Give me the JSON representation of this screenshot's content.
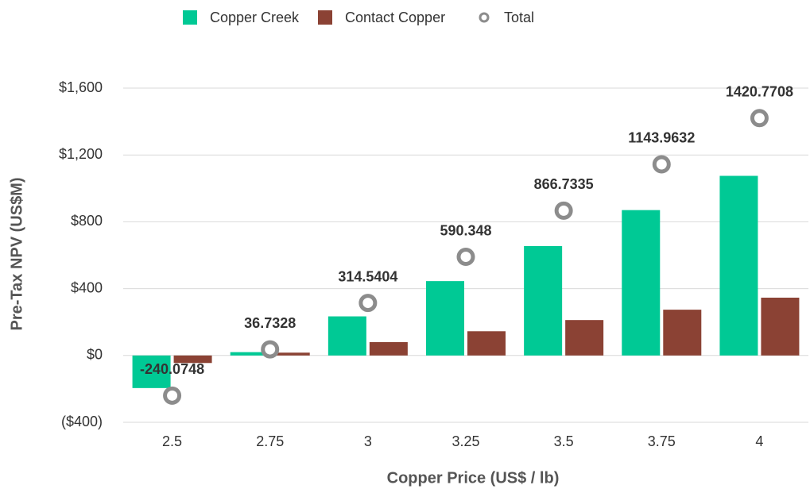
{
  "chart_data": {
    "type": "bar",
    "categories": [
      "2.5",
      "2.75",
      "3",
      "3.25",
      "3.5",
      "3.75",
      "4"
    ],
    "series": [
      {
        "name": "Copper Creek",
        "type": "bar",
        "color": "#00c995",
        "values": [
          -195,
          20,
          234,
          445,
          655,
          870,
          1075
        ]
      },
      {
        "name": "Contact Copper",
        "type": "bar",
        "color": "#8b4234",
        "values": [
          -45,
          17,
          80,
          145,
          212,
          274,
          346
        ]
      },
      {
        "name": "Total",
        "type": "scatter",
        "color": "#8c8c8c",
        "values": [
          -240.0748,
          36.7328,
          314.5404,
          590.348,
          866.7335,
          1143.9632,
          1420.7708
        ]
      }
    ],
    "xlabel": "Copper Price (US$ / lb)",
    "ylabel": "Pre-Tax NPV (US$M)",
    "ylim": [
      -400,
      1600
    ],
    "yticks": [
      {
        "value": -400,
        "label": "($400)"
      },
      {
        "value": 0,
        "label": "$0"
      },
      {
        "value": 400,
        "label": "$400"
      },
      {
        "value": 800,
        "label": "$800"
      },
      {
        "value": 1200,
        "label": "$1,200"
      },
      {
        "value": 1600,
        "label": "$1,600"
      }
    ],
    "grid": true,
    "legend": "top"
  }
}
